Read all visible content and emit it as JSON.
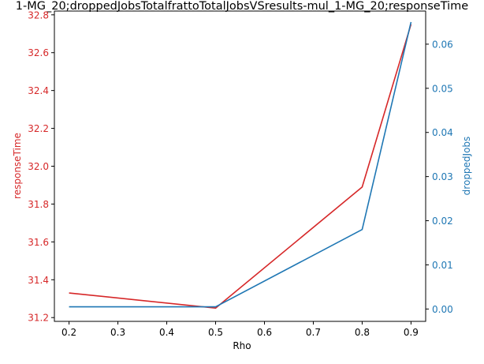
{
  "chart_data": {
    "type": "line",
    "title": "1-MG_20;droppedJobsTotalfrattoTotalJobsVSresults-mul_1-MG_20;responseTime",
    "xlabel": "Rho",
    "ylabel_left": "responseTime",
    "ylabel_right": "droppedJobs",
    "xlim": [
      0.17,
      0.93
    ],
    "ylim_left": [
      31.18,
      32.82
    ],
    "ylim_right": [
      -0.0028,
      0.0675
    ],
    "x_ticks": [
      "0.2",
      "0.3",
      "0.4",
      "0.5",
      "0.6",
      "0.7",
      "0.8",
      "0.9"
    ],
    "y_left_ticks": [
      "31.2",
      "31.4",
      "31.6",
      "31.8",
      "32.0",
      "32.2",
      "32.4",
      "32.6",
      "32.8"
    ],
    "y_right_ticks": [
      "0.00",
      "0.01",
      "0.02",
      "0.03",
      "0.04",
      "0.05",
      "0.06"
    ],
    "grid": false,
    "series": [
      {
        "axis": "left",
        "color": "#d62728",
        "x": [
          0.2,
          0.5,
          0.8,
          0.9
        ],
        "y": [
          31.33,
          31.25,
          31.89,
          32.75
        ]
      },
      {
        "axis": "right",
        "color": "#1f77b4",
        "x": [
          0.2,
          0.5,
          0.8,
          0.9
        ],
        "y": [
          0.0005,
          0.0005,
          0.018,
          0.065
        ]
      }
    ]
  }
}
